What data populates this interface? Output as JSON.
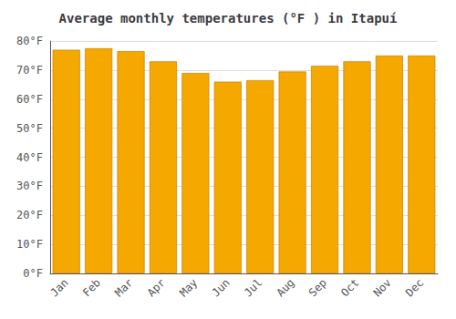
{
  "chart_data": {
    "type": "bar",
    "title": "Average monthly temperatures (°F ) in Itapuí",
    "categories": [
      "Jan",
      "Feb",
      "Mar",
      "Apr",
      "May",
      "Jun",
      "Jul",
      "Aug",
      "Sep",
      "Oct",
      "Nov",
      "Dec"
    ],
    "values": [
      77,
      77.5,
      76.5,
      73,
      69,
      66,
      66.5,
      69.5,
      71.5,
      73,
      75,
      75
    ],
    "color": "#F5A800",
    "ylim": [
      0,
      80
    ],
    "yticks": [
      {
        "value": 0,
        "label": "0°F"
      },
      {
        "value": 10,
        "label": "10°F"
      },
      {
        "value": 20,
        "label": "20°F"
      },
      {
        "value": 30,
        "label": "30°F"
      },
      {
        "value": 40,
        "label": "40°F"
      },
      {
        "value": 50,
        "label": "50°F"
      },
      {
        "value": 60,
        "label": "60°F"
      },
      {
        "value": 70,
        "label": "70°F"
      },
      {
        "value": 80,
        "label": "80°F"
      }
    ],
    "grid": true
  }
}
